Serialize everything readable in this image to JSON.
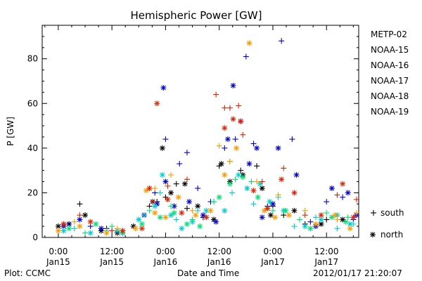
{
  "footer": {
    "left": "Plot: CCMC",
    "center": "Date and Time",
    "right": "2012/01/17 21:20:07"
  },
  "chart_data": {
    "type": "scatter",
    "title": "Hemispheric Power [GW]",
    "ylabel": "P [GW]",
    "xlabel": "Date and Time",
    "xlim": [
      -0.15,
      2.8
    ],
    "ylim": [
      0,
      95
    ],
    "x_unit": "days since Jan15 00:00",
    "x_ticks": [
      {
        "x": 0.0,
        "line1": "0:00",
        "line2": "Jan15"
      },
      {
        "x": 0.5,
        "line1": "12:00",
        "line2": "Jan15"
      },
      {
        "x": 1.0,
        "line1": "0:00",
        "line2": "Jan16"
      },
      {
        "x": 1.5,
        "line1": "12:00",
        "line2": "Jan16"
      },
      {
        "x": 2.0,
        "line1": "0:00",
        "line2": "Jan17"
      },
      {
        "x": 2.5,
        "line1": "12:00",
        "line2": "Jan17"
      }
    ],
    "y_ticks": [
      0,
      20,
      40,
      60,
      80
    ],
    "marker_legend": [
      {
        "symbol": "+",
        "label": "south"
      },
      {
        "symbol": "*",
        "label": "north"
      }
    ],
    "series": [
      {
        "name": "METP-02",
        "color": "#000000",
        "south": [
          [
            0.05,
            6
          ],
          [
            0.2,
            15
          ],
          [
            0.45,
            4
          ],
          [
            0.6,
            3
          ],
          [
            0.85,
            14
          ],
          [
            0.92,
            16
          ],
          [
            1.0,
            18
          ],
          [
            1.1,
            24
          ],
          [
            1.2,
            13
          ],
          [
            1.35,
            9
          ],
          [
            1.5,
            32
          ],
          [
            1.6,
            34
          ],
          [
            1.7,
            30
          ],
          [
            1.85,
            32
          ],
          [
            2.0,
            14
          ],
          [
            2.1,
            10
          ],
          [
            2.3,
            6
          ],
          [
            2.5,
            8
          ]
        ],
        "north": [
          [
            0.0,
            5
          ],
          [
            0.1,
            6
          ],
          [
            0.25,
            10
          ],
          [
            0.4,
            3
          ],
          [
            0.55,
            2
          ],
          [
            0.7,
            5
          ],
          [
            0.88,
            16
          ],
          [
            0.97,
            40
          ],
          [
            1.05,
            20
          ],
          [
            1.18,
            24
          ],
          [
            1.3,
            14
          ],
          [
            1.45,
            8
          ],
          [
            1.52,
            33
          ],
          [
            1.6,
            25
          ],
          [
            1.72,
            28
          ],
          [
            1.9,
            22
          ],
          [
            1.98,
            10
          ],
          [
            2.2,
            12
          ],
          [
            2.45,
            6
          ],
          [
            2.65,
            8
          ]
        ]
      },
      {
        "name": "NOAA-15",
        "color": "#0000cc",
        "south": [
          [
            0.1,
            6
          ],
          [
            0.3,
            5
          ],
          [
            0.5,
            3
          ],
          [
            0.9,
            20
          ],
          [
            1.0,
            44
          ],
          [
            1.13,
            33
          ],
          [
            1.2,
            38
          ],
          [
            1.3,
            22
          ],
          [
            1.42,
            16
          ],
          [
            1.55,
            40
          ],
          [
            1.65,
            44
          ],
          [
            1.75,
            81
          ],
          [
            1.82,
            42
          ],
          [
            1.95,
            14
          ],
          [
            2.08,
            88
          ],
          [
            2.18,
            44
          ],
          [
            2.35,
            7
          ],
          [
            2.5,
            16
          ],
          [
            2.65,
            18
          ],
          [
            2.75,
            8
          ]
        ],
        "north": [
          [
            0.05,
            5
          ],
          [
            0.2,
            8
          ],
          [
            0.4,
            4
          ],
          [
            0.6,
            2
          ],
          [
            0.8,
            10
          ],
          [
            0.92,
            15
          ],
          [
            1.0,
            25
          ],
          [
            1.08,
            14
          ],
          [
            1.22,
            16
          ],
          [
            1.35,
            10
          ],
          [
            1.47,
            7
          ],
          [
            1.58,
            44
          ],
          [
            1.63,
            68
          ],
          [
            1.7,
            52
          ],
          [
            1.78,
            33
          ],
          [
            1.85,
            40
          ],
          [
            1.9,
            9
          ],
          [
            2.0,
            15
          ],
          [
            2.05,
            40
          ],
          [
            2.22,
            28
          ],
          [
            2.4,
            5
          ],
          [
            2.55,
            22
          ],
          [
            2.7,
            20
          ],
          [
            2.78,
            10
          ],
          [
            0.98,
            67
          ]
        ]
      },
      {
        "name": "NOAA-16",
        "color": "#00cccc",
        "south": [
          [
            0.15,
            4
          ],
          [
            0.45,
            3
          ],
          [
            0.8,
            10
          ],
          [
            0.95,
            20
          ],
          [
            1.1,
            8
          ],
          [
            1.3,
            12
          ],
          [
            1.45,
            16
          ],
          [
            1.62,
            20
          ],
          [
            1.82,
            15
          ],
          [
            2.05,
            18
          ],
          [
            2.2,
            5
          ],
          [
            2.4,
            9
          ],
          [
            2.6,
            4
          ],
          [
            2.75,
            6
          ]
        ],
        "north": [
          [
            0.05,
            3
          ],
          [
            0.3,
            2
          ],
          [
            0.55,
            3
          ],
          [
            0.75,
            8
          ],
          [
            0.9,
            14
          ],
          [
            0.97,
            28
          ],
          [
            1.05,
            10
          ],
          [
            1.15,
            4
          ],
          [
            1.25,
            7
          ],
          [
            1.38,
            12
          ],
          [
            1.55,
            12
          ],
          [
            1.68,
            28
          ],
          [
            1.76,
            22
          ],
          [
            1.88,
            24
          ],
          [
            1.97,
            16
          ],
          [
            2.1,
            12
          ],
          [
            2.3,
            5
          ],
          [
            2.45,
            8
          ],
          [
            2.6,
            10
          ],
          [
            2.72,
            6
          ]
        ]
      },
      {
        "name": "NOAA-17",
        "color": "#00e070",
        "south": [
          [
            0.25,
            2
          ],
          [
            0.5,
            5
          ],
          [
            0.85,
            12
          ],
          [
            1.05,
            14
          ],
          [
            1.25,
            8
          ],
          [
            1.45,
            16
          ],
          [
            1.65,
            26
          ],
          [
            1.8,
            25
          ],
          [
            2.0,
            12
          ],
          [
            2.25,
            8
          ],
          [
            2.5,
            11
          ],
          [
            2.7,
            9
          ]
        ],
        "north": [
          [
            0.1,
            4
          ],
          [
            0.35,
            6
          ],
          [
            0.6,
            2
          ],
          [
            0.78,
            6
          ],
          [
            0.95,
            9
          ],
          [
            1.08,
            11
          ],
          [
            1.2,
            6
          ],
          [
            1.32,
            5
          ],
          [
            1.5,
            18
          ],
          [
            1.6,
            24
          ],
          [
            1.72,
            27
          ],
          [
            1.86,
            18
          ],
          [
            1.95,
            13
          ],
          [
            2.12,
            12
          ],
          [
            2.35,
            4
          ],
          [
            2.55,
            9
          ],
          [
            2.68,
            7
          ]
        ]
      },
      {
        "name": "NOAA-18",
        "color": "#ff9900",
        "south": [
          [
            0.15,
            7
          ],
          [
            0.55,
            4
          ],
          [
            0.9,
            22
          ],
          [
            1.05,
            28
          ],
          [
            1.25,
            12
          ],
          [
            1.5,
            41
          ],
          [
            1.6,
            34
          ],
          [
            1.85,
            25
          ],
          [
            2.05,
            19
          ],
          [
            2.3,
            12
          ],
          [
            2.6,
            8
          ],
          [
            2.78,
            11
          ]
        ],
        "north": [
          [
            0.0,
            3
          ],
          [
            0.2,
            5
          ],
          [
            0.45,
            2
          ],
          [
            0.72,
            4
          ],
          [
            0.82,
            21
          ],
          [
            0.9,
            11
          ],
          [
            1.0,
            9
          ],
          [
            1.12,
            18
          ],
          [
            1.28,
            10
          ],
          [
            1.42,
            12
          ],
          [
            1.55,
            28
          ],
          [
            1.66,
            40
          ],
          [
            1.78,
            87
          ],
          [
            1.92,
            12
          ],
          [
            2.02,
            9
          ],
          [
            2.15,
            10
          ],
          [
            2.4,
            6
          ],
          [
            2.58,
            10
          ],
          [
            2.72,
            4
          ]
        ]
      },
      {
        "name": "NOAA-19",
        "color": "#dd2200",
        "south": [
          [
            0.2,
            10
          ],
          [
            0.5,
            3
          ],
          [
            0.88,
            16
          ],
          [
            1.02,
            23
          ],
          [
            1.2,
            26
          ],
          [
            1.47,
            64
          ],
          [
            1.55,
            58
          ],
          [
            1.6,
            58
          ],
          [
            1.68,
            59
          ],
          [
            1.72,
            46
          ],
          [
            1.9,
            25
          ],
          [
            2.1,
            31
          ],
          [
            2.3,
            10
          ],
          [
            2.6,
            19
          ],
          [
            2.78,
            17
          ]
        ],
        "north": [
          [
            0.05,
            6
          ],
          [
            0.3,
            7
          ],
          [
            0.6,
            3
          ],
          [
            0.78,
            4
          ],
          [
            0.85,
            22
          ],
          [
            0.92,
            60
          ],
          [
            1.02,
            17
          ],
          [
            1.15,
            11
          ],
          [
            1.38,
            9
          ],
          [
            1.55,
            49
          ],
          [
            1.63,
            53
          ],
          [
            1.7,
            52
          ],
          [
            1.82,
            21
          ],
          [
            1.95,
            13
          ],
          [
            2.08,
            26
          ],
          [
            2.2,
            20
          ],
          [
            2.45,
            10
          ],
          [
            2.65,
            24
          ],
          [
            2.75,
            9
          ]
        ]
      }
    ]
  }
}
